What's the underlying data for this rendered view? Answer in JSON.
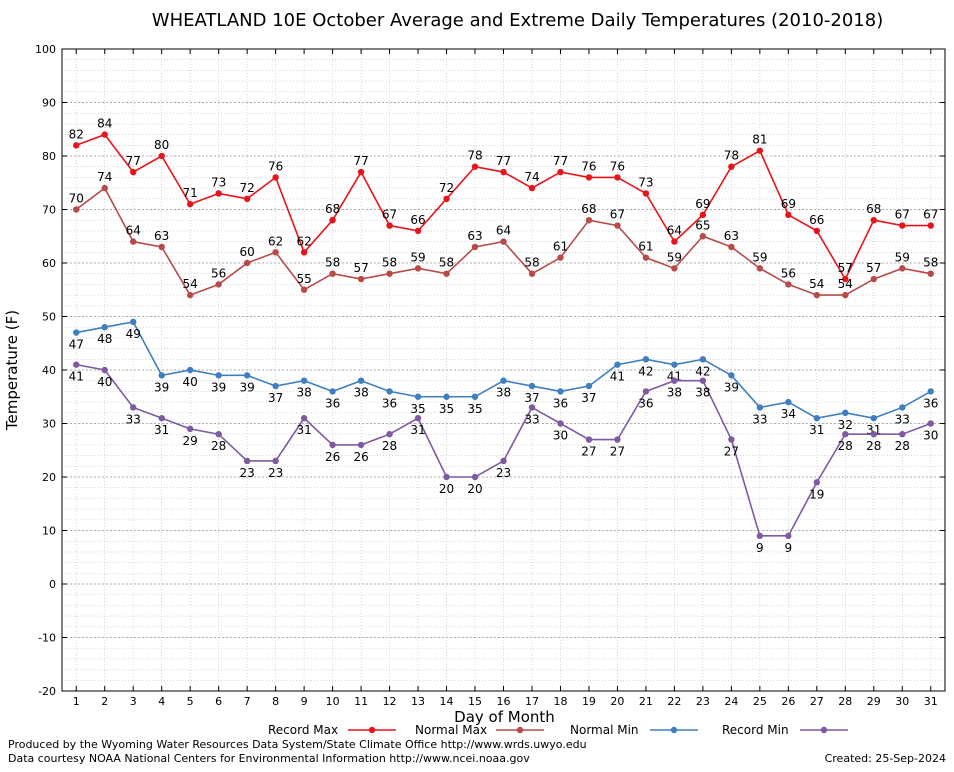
{
  "chart_data": {
    "type": "line",
    "title": "WHEATLAND 10E October Average and Extreme Daily Temperatures (2010-2018)",
    "xlabel": "Day of Month",
    "ylabel": "Temperature (F)",
    "ylim": [
      -20,
      100
    ],
    "yticks": [
      -20,
      -10,
      0,
      10,
      20,
      30,
      40,
      50,
      60,
      70,
      80,
      90,
      100
    ],
    "x": [
      1,
      2,
      3,
      4,
      5,
      6,
      7,
      8,
      9,
      10,
      11,
      12,
      13,
      14,
      15,
      16,
      17,
      18,
      19,
      20,
      21,
      22,
      23,
      24,
      25,
      26,
      27,
      28,
      29,
      30,
      31
    ],
    "grid": true,
    "legend_position": "bottom",
    "series": [
      {
        "name": "Record Max",
        "color": "#e8141a",
        "values": [
          82,
          84,
          77,
          80,
          71,
          73,
          72,
          76,
          62,
          68,
          77,
          67,
          66,
          72,
          78,
          77,
          74,
          77,
          76,
          76,
          73,
          64,
          69,
          78,
          81,
          69,
          66,
          57,
          68,
          67,
          67
        ]
      },
      {
        "name": "Normal Max",
        "color": "#b84a4a",
        "values": [
          70,
          74,
          64,
          63,
          54,
          56,
          60,
          62,
          55,
          58,
          57,
          58,
          59,
          58,
          63,
          64,
          58,
          61,
          68,
          67,
          61,
          59,
          65,
          63,
          59,
          56,
          54,
          54,
          57,
          59,
          58
        ]
      },
      {
        "name": "Normal Min",
        "color": "#3f7fbf",
        "values": [
          47,
          48,
          49,
          39,
          40,
          39,
          39,
          37,
          38,
          36,
          38,
          36,
          35,
          35,
          35,
          38,
          37,
          36,
          37,
          41,
          42,
          41,
          42,
          39,
          33,
          34,
          31,
          32,
          31,
          33,
          36
        ]
      },
      {
        "name": "Record Min",
        "color": "#7f5aa0",
        "values": [
          41,
          40,
          33,
          31,
          29,
          28,
          23,
          23,
          31,
          26,
          26,
          28,
          31,
          20,
          20,
          23,
          33,
          30,
          27,
          27,
          36,
          38,
          38,
          27,
          9,
          9,
          19,
          28,
          28,
          28,
          30
        ]
      }
    ]
  },
  "footer": {
    "producer": "Produced by the Wyoming Water Resources Data System/State Climate Office http://www.wrds.uwyo.edu",
    "courtesy": "Data courtesy NOAA National Centers for Environmental Information http://www.ncei.noaa.gov",
    "created": "Created:  25-Sep-2024"
  }
}
